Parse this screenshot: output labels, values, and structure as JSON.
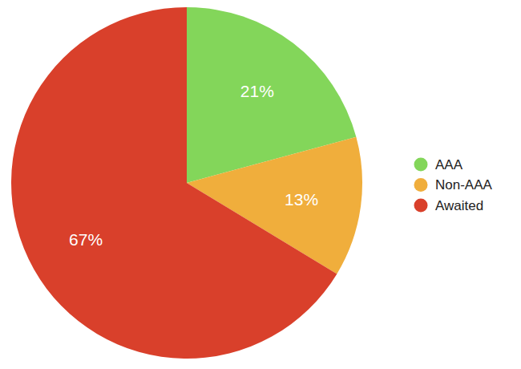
{
  "chart_data": {
    "type": "pie",
    "categories": [
      "AAA",
      "Non-AAA",
      "Awaited"
    ],
    "values": [
      21,
      13,
      67
    ],
    "value_labels": [
      "21%",
      "13%",
      "67%"
    ],
    "colors": [
      "#83d65a",
      "#f0ae3c",
      "#d9402b"
    ],
    "data_labels": true,
    "legend": "right"
  }
}
